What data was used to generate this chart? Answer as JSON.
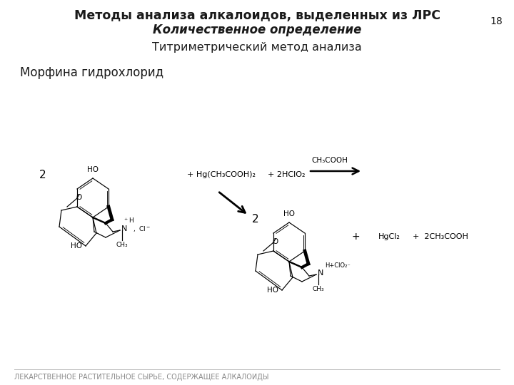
{
  "title1": "Методы анализа алкалоидов, выделенных из ЛРС",
  "title2": "Количественное определение",
  "title3": "Титриметрический метод анализа",
  "subtitle": "Морфина гидрохлорид",
  "footer": "ЛЕКАРСТВЕННОЕ РАСТИТЕЛЬНОЕ СЫРЬЕ, СОДЕРЖАЩЕЕ АЛКАЛОИДЫ",
  "page_number": "18",
  "bg_color": "#ffffff",
  "text_color": "#1a1a1a",
  "footer_color": "#888888",
  "fig_width": 7.2,
  "fig_height": 5.4,
  "dpi": 100
}
